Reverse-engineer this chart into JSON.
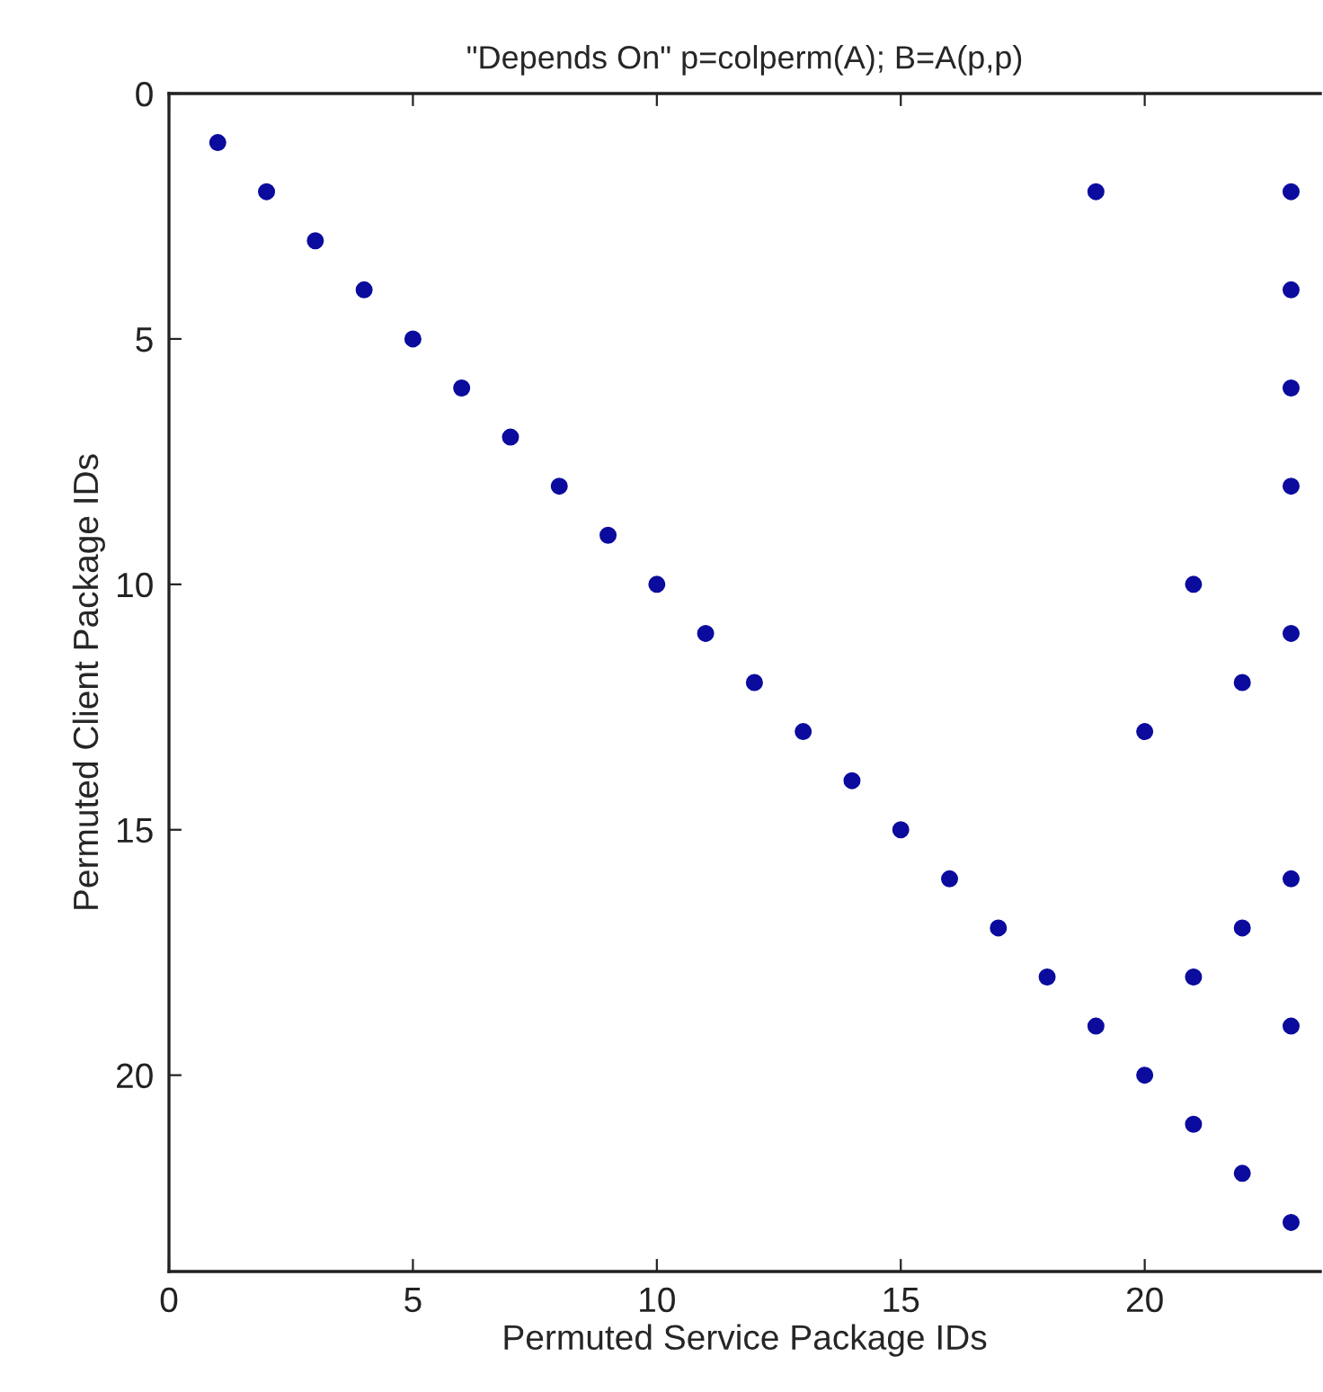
{
  "chart_data": {
    "type": "scatter",
    "title": "\"Depends On\" p=colperm(A); B=A(p,p)",
    "xlabel": "Permuted Service Package IDs",
    "ylabel": "Permuted Client Package IDs",
    "series": [
      {
        "color": "#0b0b9e",
        "x": [
          1,
          2,
          3,
          4,
          5,
          6,
          7,
          8,
          9,
          10,
          11,
          12,
          13,
          14,
          15,
          16,
          17,
          18,
          19,
          20,
          21,
          22,
          23,
          19,
          23,
          23,
          23,
          23,
          21,
          23,
          22,
          20,
          23,
          22,
          21,
          23
        ],
        "values": [
          1,
          2,
          3,
          4,
          5,
          6,
          7,
          8,
          9,
          10,
          11,
          12,
          13,
          14,
          15,
          16,
          17,
          18,
          19,
          20,
          21,
          22,
          23,
          2,
          2,
          4,
          6,
          8,
          10,
          11,
          12,
          13,
          16,
          17,
          18,
          19
        ]
      }
    ],
    "xlim": [
      0,
      23.6
    ],
    "xticks": [
      0,
      5,
      10,
      15,
      20
    ],
    "ylim": [
      24,
      0
    ],
    "yticks": [
      0,
      5,
      10,
      15,
      20
    ],
    "marker": "circle",
    "grid": false,
    "legend": false
  }
}
